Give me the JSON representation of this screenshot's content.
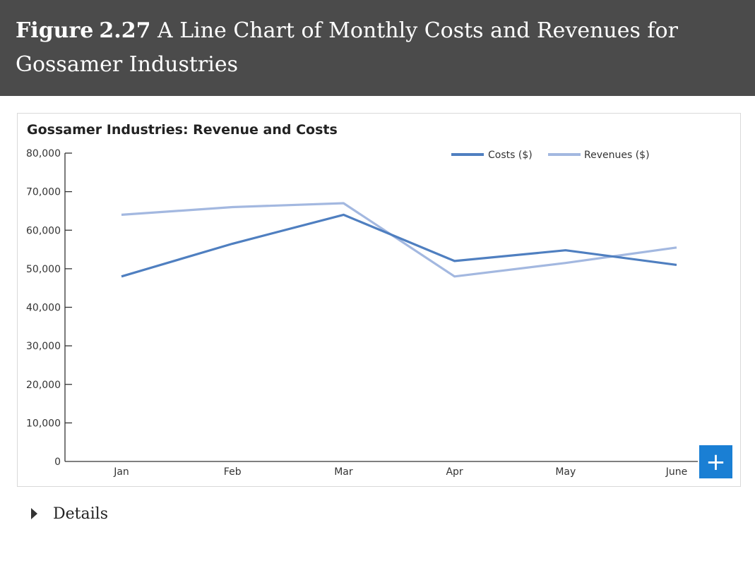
{
  "figure": {
    "label": "Figure",
    "number": "2.27",
    "caption": "A Line Chart of Monthly Costs and Revenues for Gossamer Industries"
  },
  "chart_data": {
    "type": "line",
    "title": "Gossamer Industries: Revenue and Costs",
    "xlabel": "",
    "ylabel": "",
    "categories": [
      "Jan",
      "Feb",
      "Mar",
      "Apr",
      "May",
      "June"
    ],
    "ylim": [
      0,
      80000
    ],
    "yticks": [
      0,
      10000,
      20000,
      30000,
      40000,
      50000,
      60000,
      70000,
      80000
    ],
    "ytick_labels": [
      "0",
      "10,000",
      "20,000",
      "30,000",
      "40,000",
      "50,000",
      "60,000",
      "70,000",
      "80,000"
    ],
    "grid": false,
    "legend_position": "top-right",
    "series": [
      {
        "name": "Costs ($)",
        "color": "#4f7fc0",
        "values": [
          48000,
          56500,
          64000,
          52000,
          54800,
          51000
        ]
      },
      {
        "name": "Revenues ($)",
        "color": "#a3b8e0",
        "values": [
          64000,
          66000,
          67000,
          48000,
          51500,
          55500
        ]
      }
    ]
  },
  "controls": {
    "expand_symbol": "+",
    "details_label": "Details"
  }
}
